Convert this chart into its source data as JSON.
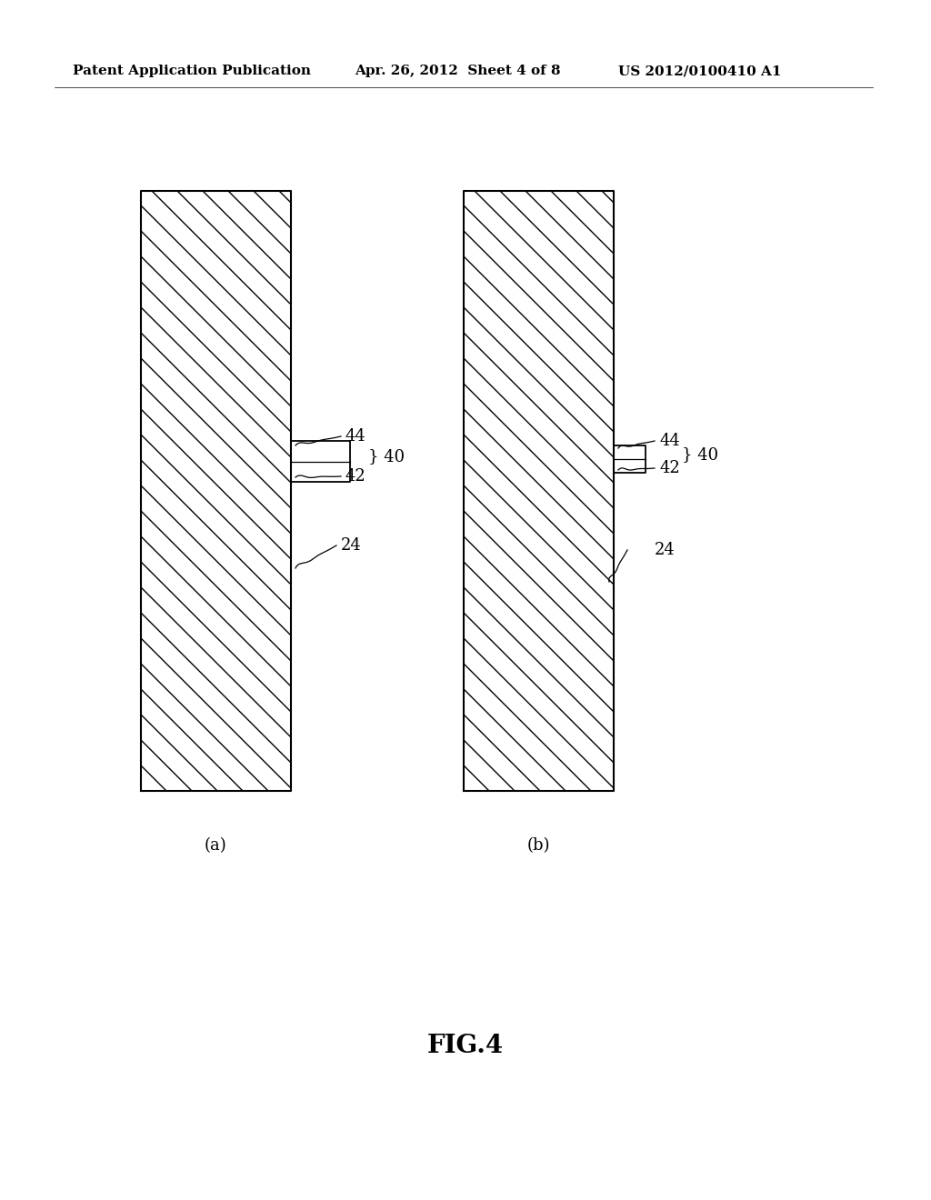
{
  "bg_color": "#ffffff",
  "header_text": "Patent Application Publication",
  "header_date": "Apr. 26, 2012  Sheet 4 of 8",
  "header_patent": "US 2012/0100410 A1",
  "fig_label": "FIG.4",
  "sub_a_label": "(a)",
  "sub_b_label": "(b)",
  "label_fontsize": 13,
  "header_fontsize": 11,
  "fig_label_fontsize": 20,
  "sub_label_fontsize": 13
}
